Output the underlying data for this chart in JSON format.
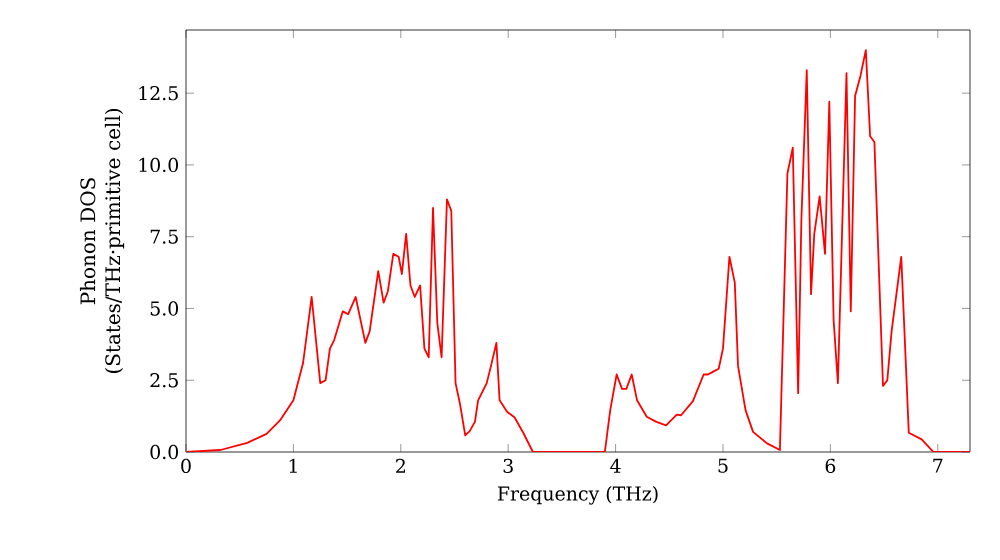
{
  "chart_data": {
    "type": "line",
    "xlabel": "Frequency (THz)",
    "ylabel": "Phonon DOS (States/THz·primitive cell)",
    "x": [
      0,
      0.32,
      0.57,
      0.75,
      0.875,
      1.0,
      1.09,
      1.17,
      1.25,
      1.3,
      1.34,
      1.38,
      1.46,
      1.51,
      1.58,
      1.67,
      1.71,
      1.79,
      1.84,
      1.88,
      1.93,
      1.98,
      2.01,
      2.05,
      2.09,
      2.13,
      2.18,
      2.22,
      2.26,
      2.3,
      2.34,
      2.38,
      2.43,
      2.47,
      2.51,
      2.55,
      2.6,
      2.64,
      2.69,
      2.72,
      2.8,
      2.84,
      2.89,
      2.92,
      2.99,
      3.06,
      3.14,
      3.23,
      3.9,
      3.95,
      4.01,
      4.06,
      4.1,
      4.15,
      4.2,
      4.29,
      4.38,
      4.47,
      4.57,
      4.61,
      4.72,
      4.82,
      4.86,
      4.91,
      4.96,
      5.0,
      5.06,
      5.11,
      5.14,
      5.21,
      5.28,
      5.41,
      5.53,
      5.6,
      5.65,
      5.7,
      5.73,
      5.78,
      5.82,
      5.85,
      5.9,
      5.95,
      5.99,
      6.03,
      6.07,
      6.15,
      6.19,
      6.23,
      6.28,
      6.33,
      6.37,
      6.41,
      6.49,
      6.53,
      6.57,
      6.66,
      6.73,
      6.85,
      6.96,
      7.3
    ],
    "series": [
      {
        "color": "#ff0000",
        "values": [
          0,
          0.07,
          0.32,
          0.63,
          1.1,
          1.8,
          3.1,
          5.4,
          2.4,
          2.5,
          3.6,
          3.9,
          4.9,
          4.8,
          5.4,
          3.8,
          4.2,
          6.3,
          5.2,
          5.6,
          6.9,
          6.8,
          6.2,
          7.6,
          5.8,
          5.4,
          5.8,
          3.6,
          3.3,
          8.5,
          4.5,
          3.3,
          8.8,
          8.4,
          2.4,
          1.7,
          0.58,
          0.72,
          1.05,
          1.8,
          2.4,
          3.0,
          3.8,
          1.8,
          1.4,
          1.2,
          0.67,
          0,
          0,
          1.46,
          2.7,
          2.2,
          2.2,
          2.7,
          1.8,
          1.23,
          1.05,
          0.93,
          1.3,
          1.28,
          1.77,
          2.7,
          2.7,
          2.8,
          2.9,
          3.6,
          6.8,
          5.9,
          3.0,
          1.46,
          0.7,
          0.3,
          0.07,
          9.7,
          10.6,
          2.05,
          8.1,
          13.3,
          5.5,
          7.6,
          8.9,
          6.9,
          12.2,
          4.6,
          2.4,
          13.2,
          4.9,
          12.4,
          13.1,
          14.0,
          11.0,
          10.8,
          2.3,
          2.5,
          4.2,
          6.8,
          0.67,
          0.44,
          0,
          0
        ]
      }
    ],
    "xlim": [
      0,
      7.3
    ],
    "ylim": [
      0,
      14.7
    ],
    "xticks": [
      0,
      1,
      2,
      3,
      4,
      5,
      6,
      7
    ],
    "yticks": [
      {
        "value": 0,
        "label": "0.0"
      },
      {
        "value": 2.5,
        "label": "2.5"
      },
      {
        "value": 5,
        "label": "5.0"
      },
      {
        "value": 7.5,
        "label": "7.5"
      },
      {
        "value": 10,
        "label": "10.0"
      },
      {
        "value": 12.5,
        "label": "12.5"
      }
    ],
    "grid": false,
    "line_style": "solid",
    "marker": "none"
  }
}
